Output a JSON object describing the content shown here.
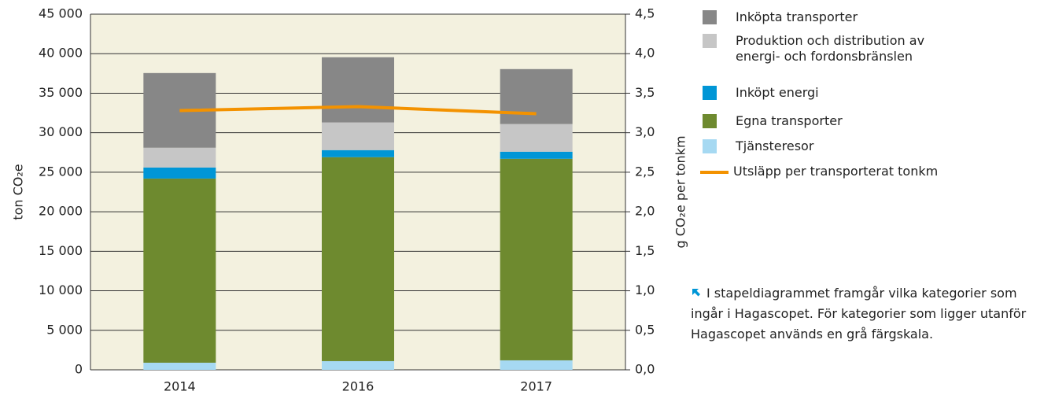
{
  "chart_data": {
    "type": "bar",
    "categories": [
      "2014",
      "2016",
      "2017"
    ],
    "series": [
      {
        "name": "Tjänsteresor",
        "color": "#a6d9f2",
        "values": [
          900,
          1100,
          1200
        ]
      },
      {
        "name": "Egna transporter",
        "color": "#6e8a2f",
        "values": [
          23300,
          25800,
          25500
        ]
      },
      {
        "name": "Inköpt energi",
        "color": "#0096d6",
        "values": [
          1400,
          900,
          900
        ]
      },
      {
        "name": "Produktion och distribution av energi- och fordonsbränslen",
        "color": "#c6c6c6",
        "values": [
          2500,
          3500,
          3500
        ]
      },
      {
        "name": "Inköpta transporter",
        "color": "#878787",
        "values": [
          9450,
          8250,
          6950
        ]
      },
      {
        "name": "Utsläpp per transporterat tonkm",
        "color": "#f39200",
        "type": "line",
        "axis": "y2",
        "values": [
          3.28,
          3.33,
          3.24
        ]
      }
    ],
    "ylabel": "ton CO₂e",
    "y2label": "g CO₂e per tonkm",
    "ylim": [
      0,
      45000
    ],
    "yticks": [
      0,
      {
        "value": 5000,
        "label": "5 000"
      },
      {
        "value": 10000,
        "label": "10 000"
      },
      {
        "value": 15000,
        "label": "15 000"
      },
      {
        "value": 20000,
        "label": "20 000"
      },
      {
        "value": 25000,
        "label": "25 000"
      },
      {
        "value": 30000,
        "label": "30 000"
      },
      {
        "value": 35000,
        "label": "35 000"
      },
      {
        "value": 40000,
        "label": "40 000"
      },
      {
        "value": 45000,
        "label": "45 000"
      }
    ],
    "y2lim": [
      0,
      4.5
    ],
    "y2ticks": [
      {
        "value": 0,
        "label": "0,0"
      },
      {
        "value": 0.5,
        "label": "0,5"
      },
      {
        "value": 1,
        "label": "1,0"
      },
      {
        "value": 1.5,
        "label": "1,5"
      },
      {
        "value": 2,
        "label": "2,0"
      },
      {
        "value": 2.5,
        "label": "2,5"
      },
      {
        "value": 3,
        "label": "3,0"
      },
      {
        "value": 3.5,
        "label": "3,5"
      },
      {
        "value": 4,
        "label": "4,0"
      },
      {
        "value": 4.5,
        "label": "4,5"
      }
    ],
    "grid": true,
    "note": "I stapeldiagrammet framgår vilka kategorier som ingår i Hagascopet. För kategorier som ligger utanför Hagascopet används en grå färgskala."
  }
}
